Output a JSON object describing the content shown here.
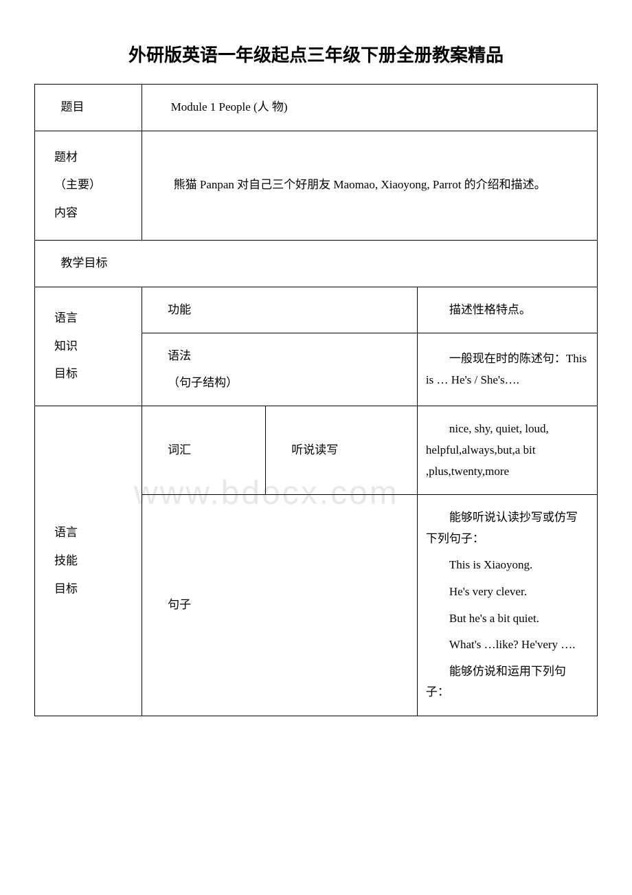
{
  "page": {
    "title": "外研版英语一年级起点三年级下册全册教案精品",
    "watermark": "www.bdocx.com"
  },
  "table": {
    "rows": {
      "r1_label": "题目",
      "r1_value": "Module  1 People  (人 物)",
      "r2_label_line1": "题材",
      "r2_label_line2": "（主要）",
      "r2_label_line3": "内容",
      "r2_value": "熊猫 Panpan   对自己三个好朋友 Maomao, Xiaoyong, Parrot 的介绍和描述。",
      "r3_label": "教学目标",
      "r4_rowlabel_line1": "语言",
      "r4_rowlabel_line2": "知识",
      "r4_rowlabel_line3": "目标",
      "r4_sub1_label": "功能",
      "r4_sub1_value": "描述性格特点。",
      "r4_sub2_label_line1": "语法",
      "r4_sub2_label_line2": "（句子结构）",
      "r4_sub2_value": "一般现在时的陈述句：This is … He's / She's….",
      "r5_rowlabel_line1": "语言",
      "r5_rowlabel_line2": "技能",
      "r5_rowlabel_line3": "目标",
      "r5_sub1_label": "词汇",
      "r5_sub1_mid": "听说读写",
      "r5_sub1_value": "nice, shy, quiet, loud, helpful,always,but,a bit ,plus,twenty,more",
      "r5_sub2_label": "句子",
      "r5_sub2_p1": "能够听说认读抄写或仿写下列句子：",
      "r5_sub2_p2": "This is Xiaoyong.",
      "r5_sub2_p3": " He's very clever.",
      "r5_sub2_p4": "But he's a bit quiet.",
      "r5_sub2_p5": "What's …like?  He'very ….",
      "r5_sub2_p6": "能够仿说和运用下列句子："
    }
  },
  "style": {
    "background_color": "#ffffff",
    "border_color": "#000000",
    "text_color": "#000000",
    "watermark_color": "#e8e8e8",
    "title_fontsize": 26,
    "cell_fontsize": 17
  }
}
